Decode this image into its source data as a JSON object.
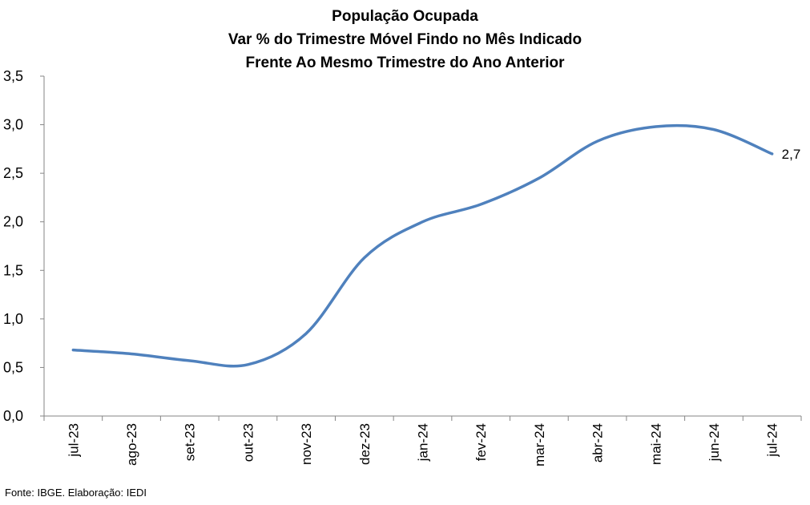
{
  "chart_data": {
    "type": "line",
    "title": [
      "População Ocupada",
      "Var % do Trimestre Móvel Findo no Mês Indicado",
      "Frente Ao Mesmo Trimestre do Ano Anterior"
    ],
    "xlabel": "",
    "ylabel": "",
    "categories": [
      "jul-23",
      "ago-23",
      "set-23",
      "out-23",
      "nov-23",
      "dez-23",
      "jan-24",
      "fev-24",
      "mar-24",
      "abr-24",
      "mai-24",
      "jun-24",
      "jul-24"
    ],
    "series": [
      {
        "values": [
          0.68,
          0.64,
          0.57,
          0.53,
          0.85,
          1.63,
          2.0,
          2.18,
          2.45,
          2.83,
          2.98,
          2.95,
          2.7
        ],
        "color": "#4f81bd"
      }
    ],
    "y_tick_labels": [
      "0,0",
      "0,5",
      "1,0",
      "1,5",
      "2,0",
      "2,5",
      "3,0",
      "3,5"
    ],
    "ylim": [
      0,
      3.5
    ],
    "y_step": 0.5,
    "grid": false,
    "legend": "none",
    "last_point_label": "2,7"
  },
  "source": "Fonte: IBGE. Elaboração: IEDI"
}
